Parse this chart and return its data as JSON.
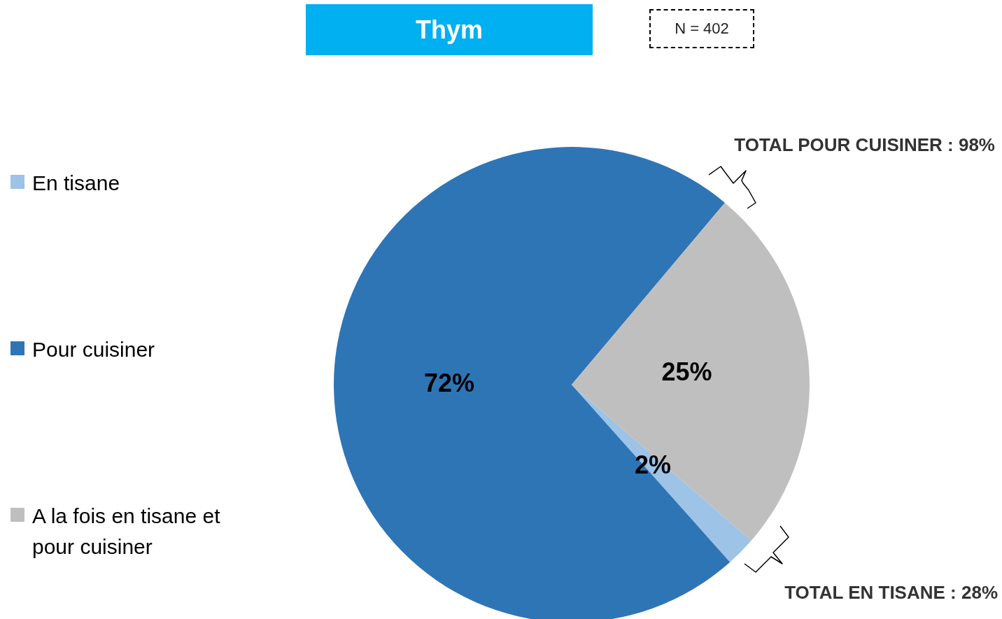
{
  "chart_data": {
    "type": "pie",
    "title": "Thym",
    "subtitle": "N = 402",
    "categories": [
      "En tisane",
      "Pour cuisiner",
      "A la fois en tisane et pour cuisiner"
    ],
    "values": [
      2,
      72,
      25
    ],
    "colors": [
      "#9dc3e6",
      "#2e75b6",
      "#bfbfbf"
    ],
    "value_labels": [
      "2%",
      "72%",
      "25%"
    ],
    "legend": "left",
    "annotations": [
      "TOTAL POUR CUISINER : 98%",
      "TOTAL EN TISANE : 28%"
    ]
  }
}
